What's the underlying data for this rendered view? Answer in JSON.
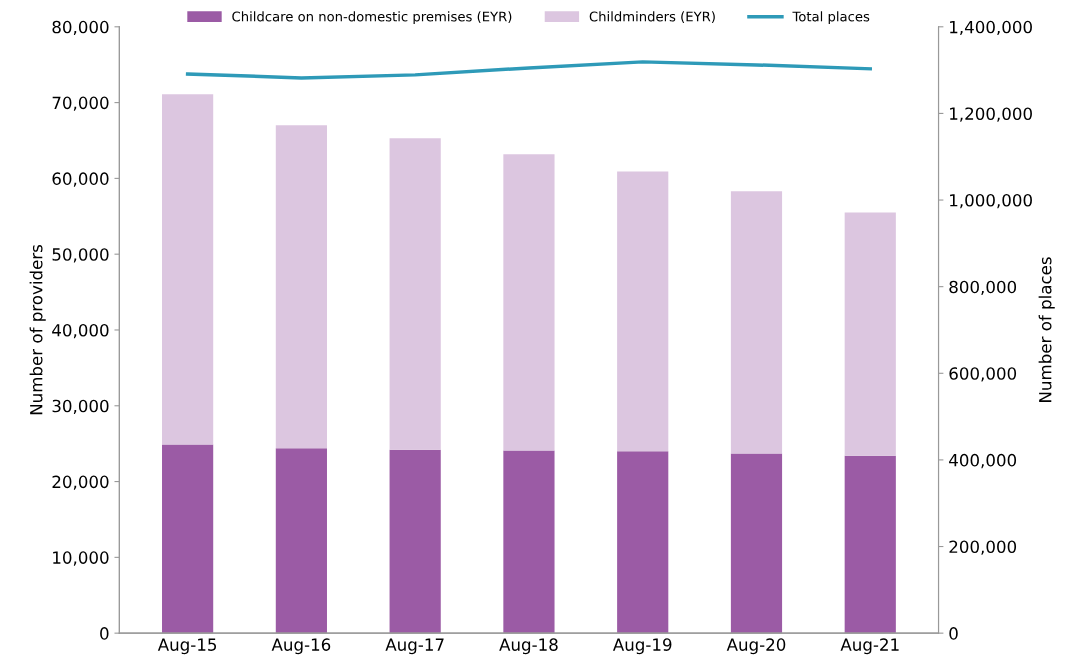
{
  "chart_data": {
    "type": "bar",
    "stacked": true,
    "categories": [
      "Aug-15",
      "Aug-16",
      "Aug-17",
      "Aug-18",
      "Aug-19",
      "Aug-20",
      "Aug-21"
    ],
    "series": [
      {
        "name": "Childcare on non-domestic premises (EYR)",
        "color": "#9b5ba5",
        "values": [
          24900,
          24400,
          24200,
          24100,
          24000,
          23700,
          23400
        ]
      },
      {
        "name": "Childminders (EYR)",
        "color": "#dcc6e0",
        "values": [
          46200,
          42600,
          41100,
          39100,
          36900,
          34600,
          32100
        ]
      },
      {
        "name": "Total places",
        "type": "line",
        "axis": "y2",
        "color": "#2e9ab8",
        "values": [
          1291000,
          1282000,
          1289000,
          1305000,
          1319000,
          1312000,
          1303000
        ]
      }
    ],
    "ylabel": "Number of providers",
    "y2label": "Number of places",
    "ylim": [
      0,
      80000
    ],
    "yticks": [
      {
        "value": 0,
        "label": "0"
      },
      {
        "value": 10000,
        "label": "10,000"
      },
      {
        "value": 20000,
        "label": "20,000"
      },
      {
        "value": 30000,
        "label": "30,000"
      },
      {
        "value": 40000,
        "label": "40,000"
      },
      {
        "value": 50000,
        "label": "50,000"
      },
      {
        "value": 60000,
        "label": "60,000"
      },
      {
        "value": 70000,
        "label": "70,000"
      },
      {
        "value": 80000,
        "label": "80,000"
      }
    ],
    "y2lim": [
      0,
      1400000
    ],
    "y2ticks": [
      {
        "value": 0,
        "label": "0"
      },
      {
        "value": 200000,
        "label": "200,000"
      },
      {
        "value": 400000,
        "label": "400,000"
      },
      {
        "value": 600000,
        "label": "600,000"
      },
      {
        "value": 800000,
        "label": "800,000"
      },
      {
        "value": 1000000,
        "label": "1,000,000"
      },
      {
        "value": 1200000,
        "label": "1,200,000"
      },
      {
        "value": 1400000,
        "label": "1,400,000"
      }
    ],
    "legend": "top",
    "grid": false
  }
}
